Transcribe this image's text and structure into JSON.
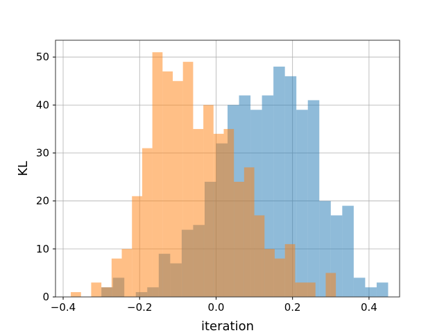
{
  "chart_data": {
    "type": "bar",
    "subtype": "overlapping-histogram",
    "title": "",
    "xlabel": "iteration",
    "ylabel": "KL",
    "xlim": [
      -0.42,
      0.48
    ],
    "ylim": [
      0,
      53.5
    ],
    "x_ticks": [
      -0.4,
      -0.2,
      0.0,
      0.2,
      0.4
    ],
    "x_tick_labels": [
      "−0.4",
      "−0.2",
      "0.0",
      "0.2",
      "0.4"
    ],
    "y_ticks": [
      0,
      10,
      20,
      30,
      40,
      50
    ],
    "y_tick_labels": [
      "0",
      "10",
      "20",
      "30",
      "40",
      "50"
    ],
    "grid": true,
    "legend": "none",
    "series": [
      {
        "color": "#1f77b4",
        "alpha": 0.5,
        "bin_edges": [
          -0.3,
          -0.27,
          -0.24,
          -0.21,
          -0.18,
          -0.15,
          -0.12,
          -0.09,
          -0.06,
          -0.03,
          0.0,
          0.03,
          0.06,
          0.09,
          0.12,
          0.15,
          0.18,
          0.21,
          0.24,
          0.27,
          0.3,
          0.33,
          0.36,
          0.39,
          0.42,
          0.45
        ],
        "counts": [
          2,
          4,
          0,
          1,
          2,
          9,
          7,
          14,
          15,
          24,
          32,
          40,
          42,
          39,
          42,
          48,
          46,
          39,
          41,
          20,
          17,
          19,
          4,
          2,
          3
        ]
      },
      {
        "color": "#ff7f0e",
        "alpha": 0.5,
        "bin_edges": [
          -0.38,
          -0.3533,
          -0.3267,
          -0.3,
          -0.2733,
          -0.2467,
          -0.22,
          -0.1933,
          -0.1667,
          -0.14,
          -0.1133,
          -0.0867,
          -0.06,
          -0.0333,
          -0.0067,
          0.02,
          0.0467,
          0.0733,
          0.1,
          0.1267,
          0.1533,
          0.18,
          0.2067,
          0.2333,
          0.26,
          0.2867,
          0.3133,
          0.34
        ],
        "counts": [
          1,
          0,
          3,
          2,
          8,
          10,
          21,
          31,
          51,
          47,
          45,
          49,
          35,
          40,
          34,
          35,
          24,
          27,
          17,
          10,
          8,
          11,
          3,
          3,
          0,
          5,
          0
        ]
      }
    ]
  }
}
